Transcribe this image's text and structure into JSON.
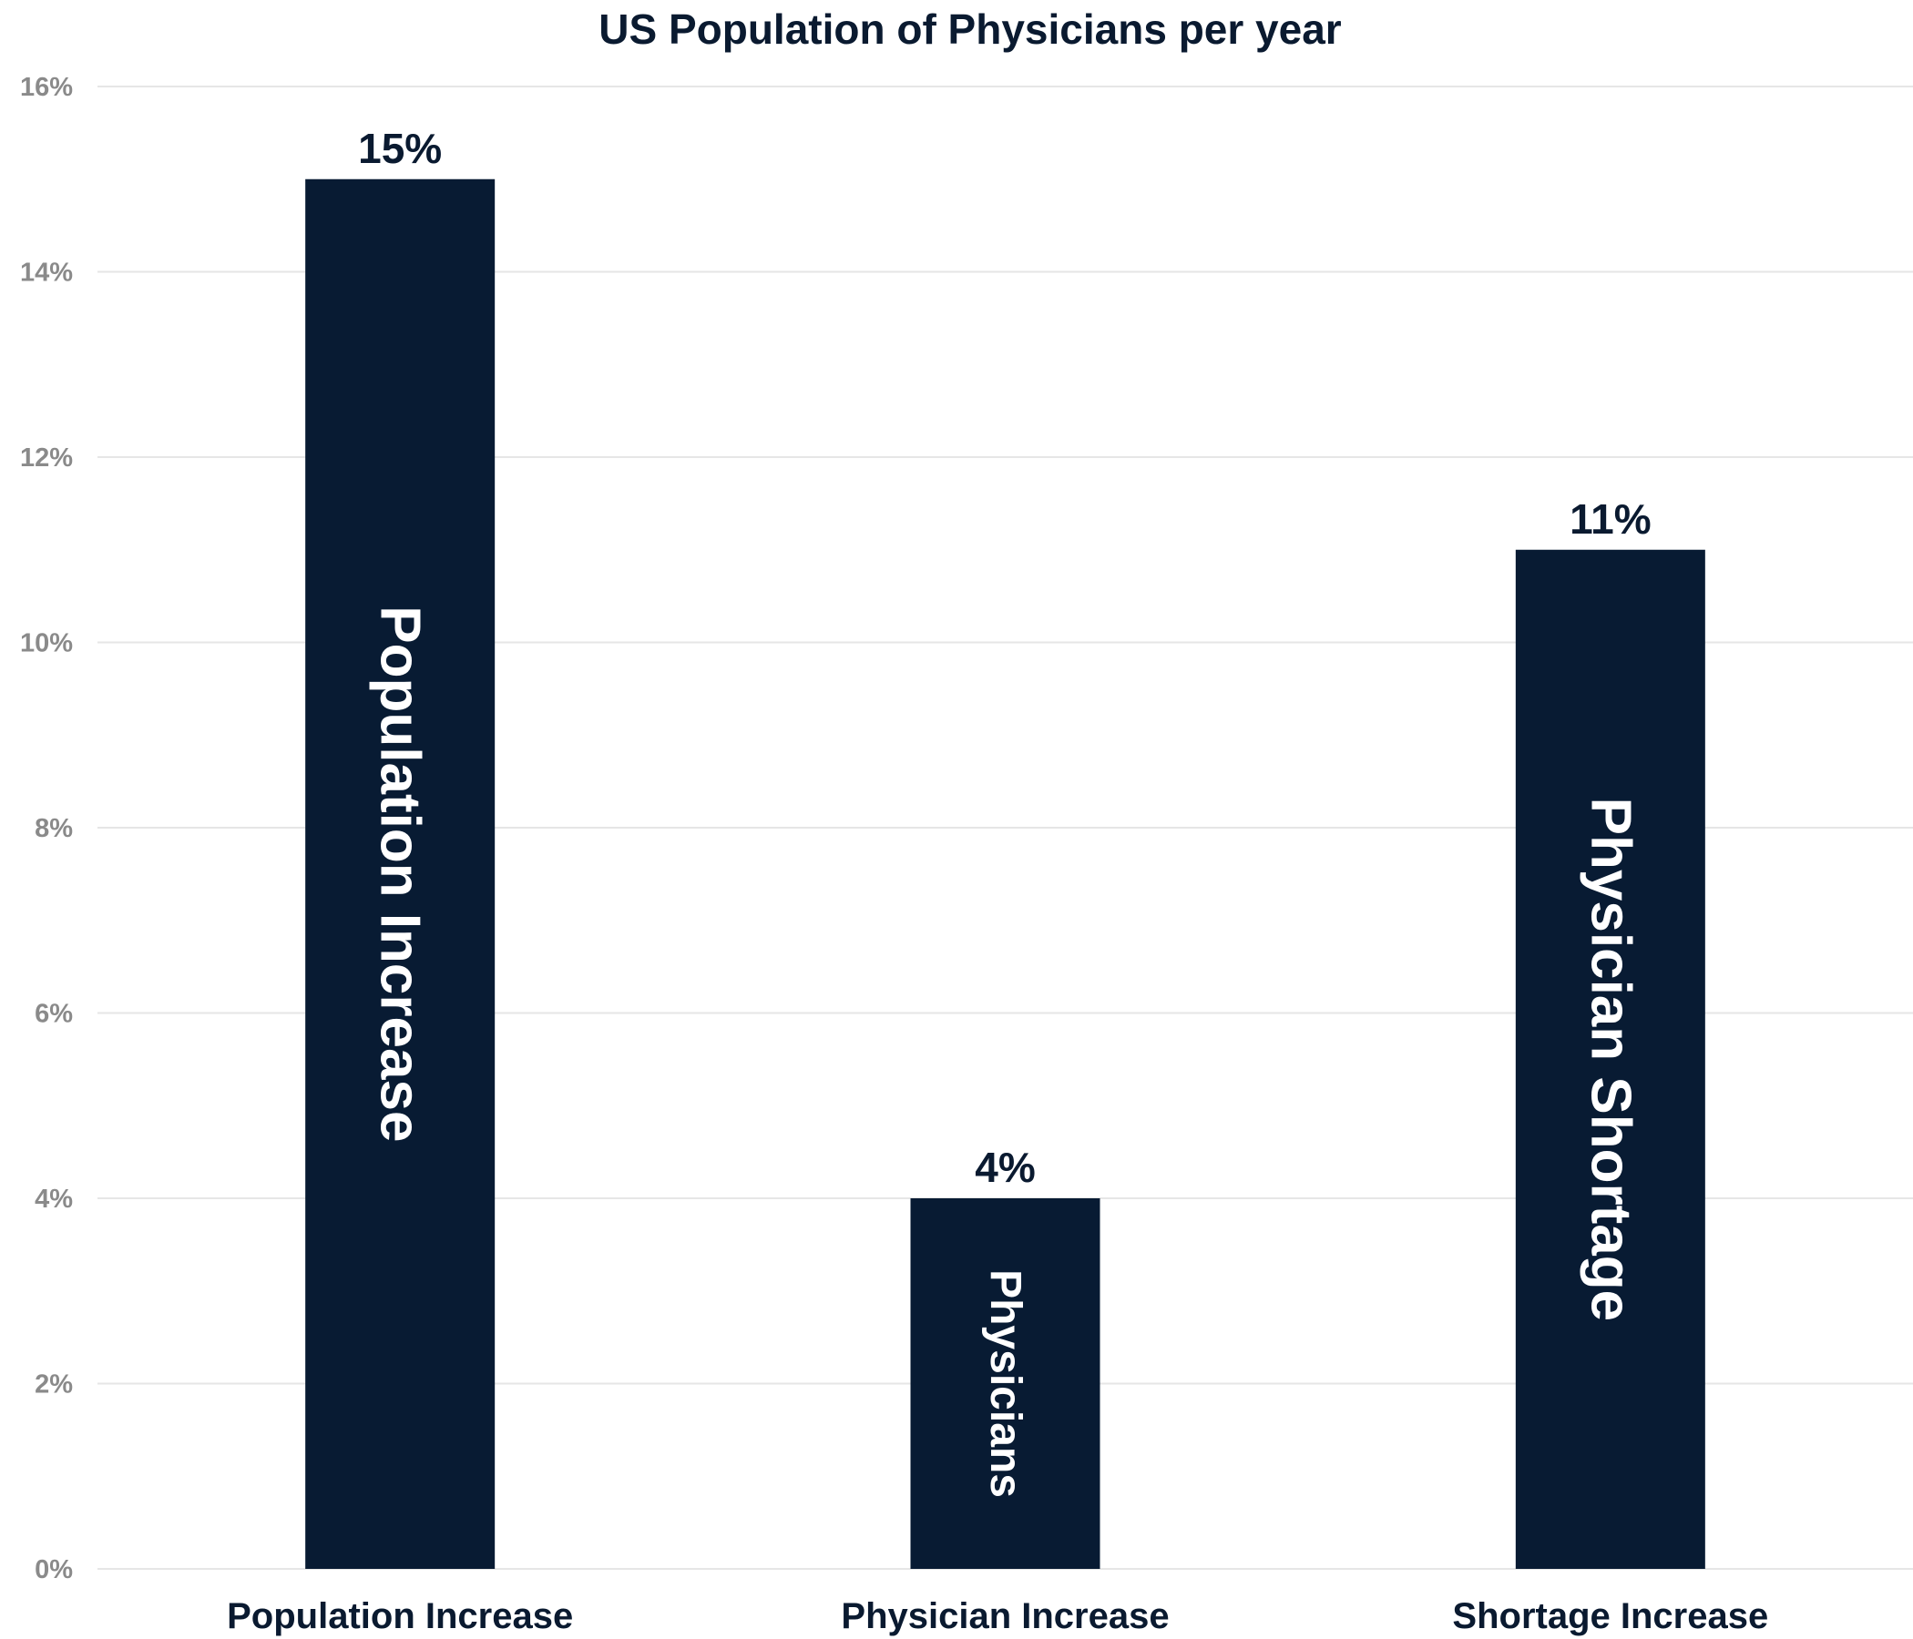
{
  "chart_data": {
    "type": "bar",
    "title": "US Population of Physicians per year",
    "xlabel": "",
    "ylabel": "",
    "categories": [
      "Population Increase",
      "Physician Increase",
      "Shortage Increase"
    ],
    "values": [
      15,
      4,
      11
    ],
    "data_labels": [
      "15%",
      "4%",
      "11%"
    ],
    "bar_inner_labels": [
      "Population Increase",
      "Physicians",
      "Physician Shortage"
    ],
    "ylim": [
      0,
      16
    ],
    "y_ticks": [
      0,
      2,
      4,
      6,
      8,
      10,
      12,
      14,
      16
    ],
    "y_tick_labels": [
      "0%",
      "2%",
      "4%",
      "6%",
      "8%",
      "10%",
      "12%",
      "14%",
      "16%"
    ],
    "grid": true,
    "legend": "none",
    "bar_color": "#081b33"
  }
}
